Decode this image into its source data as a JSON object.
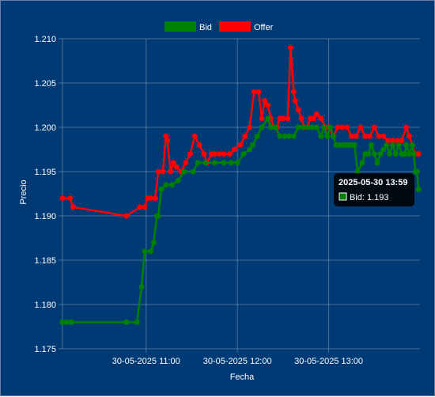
{
  "chart_data": {
    "type": "line",
    "xlabel": "Fecha",
    "ylabel": "Precio",
    "ylim": [
      1.175,
      1.21
    ],
    "yticks": [
      "1.175",
      "1.180",
      "1.185",
      "1.190",
      "1.195",
      "1.200",
      "1.205",
      "1.210"
    ],
    "x_range": [
      "2025-05-30 10:05",
      "2025-05-30 14:00"
    ],
    "xticks": [
      {
        "time": "2025-05-30 11:00",
        "label": "30-05-2025 11:00"
      },
      {
        "time": "2025-05-30 12:00",
        "label": "30-05-2025 12:00"
      },
      {
        "time": "2025-05-30 13:00",
        "label": "30-05-2025 13:00"
      }
    ],
    "grid": true,
    "legend": "top-center",
    "series": [
      {
        "name": "Bid",
        "color": "#008000",
        "points": [
          [
            "10:05",
            1.178
          ],
          [
            "10:08",
            1.178
          ],
          [
            "10:11",
            1.178
          ],
          [
            "10:47",
            1.178
          ],
          [
            "10:54",
            1.178
          ],
          [
            "10:57",
            1.182
          ],
          [
            "10:59",
            1.186
          ],
          [
            "11:03",
            1.186
          ],
          [
            "11:05",
            1.187
          ],
          [
            "11:07",
            1.19
          ],
          [
            "11:08",
            1.19
          ],
          [
            "11:10",
            1.193
          ],
          [
            "11:13",
            1.1935
          ],
          [
            "11:17",
            1.1935
          ],
          [
            "11:21",
            1.194
          ],
          [
            "11:25",
            1.195
          ],
          [
            "11:31",
            1.195
          ],
          [
            "11:34",
            1.196
          ],
          [
            "11:39",
            1.196
          ],
          [
            "11:45",
            1.196
          ],
          [
            "11:51",
            1.196
          ],
          [
            "11:56",
            1.196
          ],
          [
            "12:00",
            1.196
          ],
          [
            "12:04",
            1.197
          ],
          [
            "12:08",
            1.1975
          ],
          [
            "12:10",
            1.198
          ],
          [
            "12:13",
            1.199
          ],
          [
            "12:16",
            1.2
          ],
          [
            "12:20",
            1.201
          ],
          [
            "12:22",
            1.2
          ],
          [
            "12:25",
            1.2
          ],
          [
            "12:28",
            1.199
          ],
          [
            "12:31",
            1.199
          ],
          [
            "12:34",
            1.199
          ],
          [
            "12:37",
            1.199
          ],
          [
            "12:40",
            1.2
          ],
          [
            "12:43",
            1.2
          ],
          [
            "12:46",
            1.2
          ],
          [
            "12:49",
            1.2
          ],
          [
            "12:52",
            1.2
          ],
          [
            "12:55",
            1.199
          ],
          [
            "12:57",
            1.2
          ],
          [
            "12:59",
            1.199
          ],
          [
            "13:01",
            1.2
          ],
          [
            "13:03",
            1.199
          ],
          [
            "13:05",
            1.198
          ],
          [
            "13:07",
            1.198
          ],
          [
            "13:09",
            1.198
          ],
          [
            "13:11",
            1.198
          ],
          [
            "13:13",
            1.198
          ],
          [
            "13:15",
            1.198
          ],
          [
            "13:17",
            1.198
          ],
          [
            "13:19",
            1.195
          ],
          [
            "13:22",
            1.196
          ],
          [
            "13:24",
            1.197
          ],
          [
            "13:26",
            1.197
          ],
          [
            "13:28",
            1.198
          ],
          [
            "13:30",
            1.197
          ],
          [
            "13:32",
            1.196
          ],
          [
            "13:34",
            1.197
          ],
          [
            "13:36",
            1.1975
          ],
          [
            "13:38",
            1.198
          ],
          [
            "13:40",
            1.197
          ],
          [
            "13:42",
            1.198
          ],
          [
            "13:44",
            1.197
          ],
          [
            "13:46",
            1.198
          ],
          [
            "13:48",
            1.197
          ],
          [
            "13:50",
            1.197
          ],
          [
            "13:51",
            1.198
          ],
          [
            "13:53",
            1.197
          ],
          [
            "13:55",
            1.198
          ],
          [
            "13:56",
            1.197
          ],
          [
            "13:57",
            1.195
          ],
          [
            "13:58",
            1.195
          ],
          [
            "13:59",
            1.193
          ]
        ]
      },
      {
        "name": "Offer",
        "color": "#ff0000",
        "points": [
          [
            "10:05",
            1.192
          ],
          [
            "10:10",
            1.192
          ],
          [
            "10:12",
            1.191
          ],
          [
            "10:47",
            1.19
          ],
          [
            "10:56",
            1.191
          ],
          [
            "10:59",
            1.191
          ],
          [
            "11:01",
            1.192
          ],
          [
            "11:03",
            1.192
          ],
          [
            "11:06",
            1.192
          ],
          [
            "11:08",
            1.195
          ],
          [
            "11:11",
            1.195
          ],
          [
            "11:13",
            1.199
          ],
          [
            "11:14",
            1.1985
          ],
          [
            "11:16",
            1.195
          ],
          [
            "11:18",
            1.196
          ],
          [
            "11:20",
            1.1955
          ],
          [
            "11:23",
            1.195
          ],
          [
            "11:26",
            1.196
          ],
          [
            "11:29",
            1.197
          ],
          [
            "11:32",
            1.199
          ],
          [
            "11:35",
            1.198
          ],
          [
            "11:38",
            1.197
          ],
          [
            "11:40",
            1.196
          ],
          [
            "11:43",
            1.197
          ],
          [
            "11:45",
            1.197
          ],
          [
            "11:48",
            1.197
          ],
          [
            "11:51",
            1.197
          ],
          [
            "11:55",
            1.197
          ],
          [
            "11:58",
            1.1975
          ],
          [
            "12:02",
            1.198
          ],
          [
            "12:05",
            1.199
          ],
          [
            "12:08",
            1.2
          ],
          [
            "12:11",
            1.204
          ],
          [
            "12:14",
            1.204
          ],
          [
            "12:16",
            1.201
          ],
          [
            "12:18",
            1.203
          ],
          [
            "12:20",
            1.2025
          ],
          [
            "12:22",
            1.201
          ],
          [
            "12:24",
            1.2
          ],
          [
            "12:26",
            1.2
          ],
          [
            "12:28",
            1.201
          ],
          [
            "12:30",
            1.201
          ],
          [
            "12:33",
            1.201
          ],
          [
            "12:35",
            1.209
          ],
          [
            "12:37",
            1.204
          ],
          [
            "12:38",
            1.203
          ],
          [
            "12:40",
            1.202
          ],
          [
            "12:42",
            1.201
          ],
          [
            "12:44",
            1.2
          ],
          [
            "12:46",
            1.2
          ],
          [
            "12:48",
            1.201
          ],
          [
            "12:50",
            1.201
          ],
          [
            "12:52",
            1.2015
          ],
          [
            "12:55",
            1.201
          ],
          [
            "12:58",
            1.2
          ],
          [
            "13:00",
            1.2
          ],
          [
            "13:03",
            1.199
          ],
          [
            "13:06",
            1.2
          ],
          [
            "13:09",
            1.2
          ],
          [
            "13:12",
            1.2
          ],
          [
            "13:15",
            1.199
          ],
          [
            "13:18",
            1.199
          ],
          [
            "13:21",
            1.2
          ],
          [
            "13:24",
            1.199
          ],
          [
            "13:27",
            1.199
          ],
          [
            "13:30",
            1.2
          ],
          [
            "13:33",
            1.199
          ],
          [
            "13:36",
            1.199
          ],
          [
            "13:39",
            1.1985
          ],
          [
            "13:42",
            1.1985
          ],
          [
            "13:45",
            1.1985
          ],
          [
            "13:48",
            1.1985
          ],
          [
            "13:51",
            1.2
          ],
          [
            "13:53",
            1.199
          ],
          [
            "13:55",
            1.198
          ],
          [
            "13:57",
            1.197
          ],
          [
            "13:59",
            1.197
          ]
        ]
      }
    ],
    "tooltip": {
      "title": "2025-05-30 13:59",
      "series": "Bid",
      "value": 1.193,
      "text": "Bid: 1.193"
    }
  }
}
